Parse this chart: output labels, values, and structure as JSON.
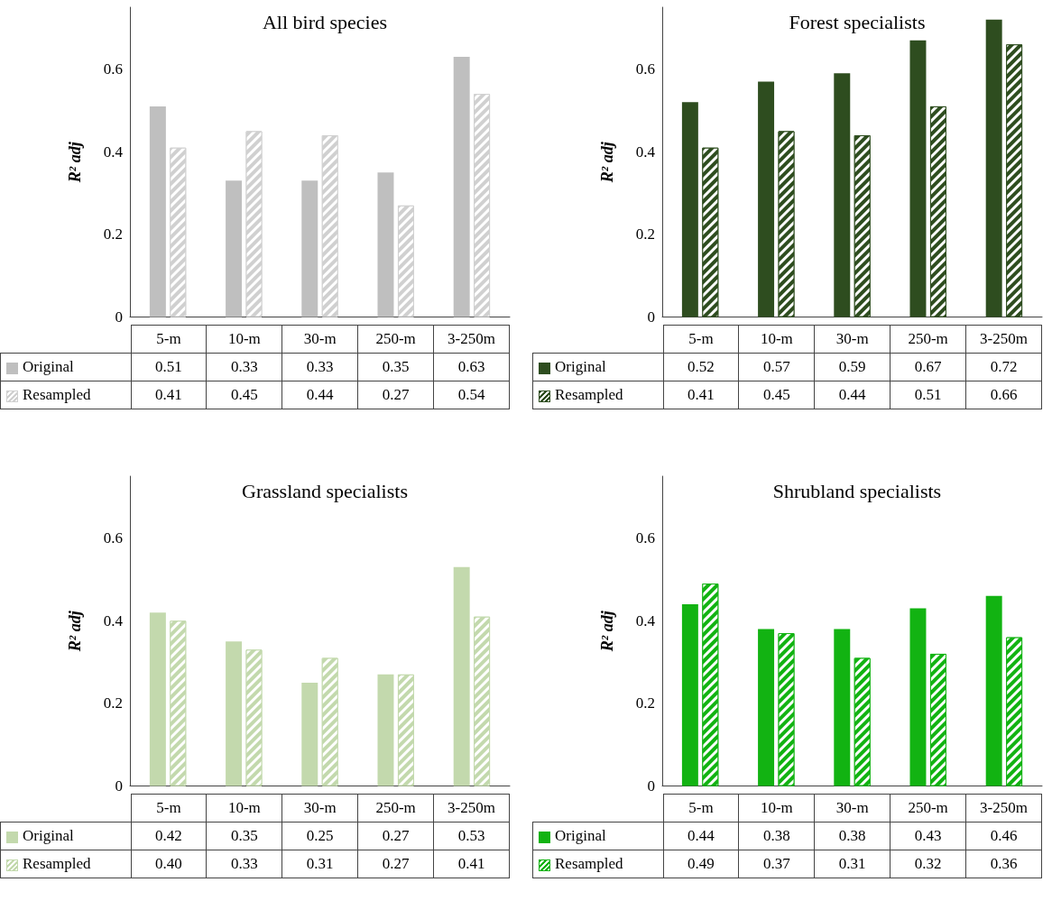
{
  "chart_data": [
    {
      "type": "bar",
      "title": "All bird species",
      "ylabel": "R² adj",
      "categories": [
        "5-m",
        "10-m",
        "30-m",
        "250-m",
        "3-250m"
      ],
      "ylim": [
        0,
        0.75
      ],
      "yticks": [
        0,
        0.2,
        0.4,
        0.6
      ],
      "grid": false,
      "legend": "bottom",
      "series": [
        {
          "name": "Original",
          "color": "#bfbfbf",
          "values": [
            0.51,
            0.33,
            0.33,
            0.35,
            0.63
          ],
          "value_labels": [
            "0.51",
            "0.33",
            "0.33",
            "0.35",
            "0.63"
          ]
        },
        {
          "name": "Resampled",
          "color": "#d0d0d0",
          "values": [
            0.41,
            0.45,
            0.44,
            0.27,
            0.54
          ],
          "value_labels": [
            "0.41",
            "0.45",
            "0.44",
            "0.27",
            "0.54"
          ]
        }
      ]
    },
    {
      "type": "bar",
      "title": "Forest specialists",
      "ylabel": "R² adj",
      "categories": [
        "5-m",
        "10-m",
        "30-m",
        "250-m",
        "3-250m"
      ],
      "ylim": [
        0,
        0.75
      ],
      "yticks": [
        0,
        0.2,
        0.4,
        0.6
      ],
      "grid": false,
      "legend": "bottom",
      "series": [
        {
          "name": "Original",
          "color": "#2e4d1f",
          "values": [
            0.52,
            0.57,
            0.59,
            0.67,
            0.72
          ],
          "value_labels": [
            "0.52",
            "0.57",
            "0.59",
            "0.67",
            "0.72"
          ]
        },
        {
          "name": "Resampled",
          "color": "#2e4d1f",
          "values": [
            0.41,
            0.45,
            0.44,
            0.51,
            0.66
          ],
          "value_labels": [
            "0.41",
            "0.45",
            "0.44",
            "0.51",
            "0.66"
          ]
        }
      ]
    },
    {
      "type": "bar",
      "title": "Grassland specialists",
      "ylabel": "R² adj",
      "categories": [
        "5-m",
        "10-m",
        "30-m",
        "250-m",
        "3-250m"
      ],
      "ylim": [
        0,
        0.75
      ],
      "yticks": [
        0,
        0.2,
        0.4,
        0.6
      ],
      "grid": false,
      "legend": "bottom",
      "series": [
        {
          "name": "Original",
          "color": "#c3d9ad",
          "values": [
            0.42,
            0.35,
            0.25,
            0.27,
            0.53
          ],
          "value_labels": [
            "0.42",
            "0.35",
            "0.25",
            "0.27",
            "0.53"
          ]
        },
        {
          "name": "Resampled",
          "color": "#c3d9ad",
          "values": [
            0.4,
            0.33,
            0.31,
            0.27,
            0.41
          ],
          "value_labels": [
            "0.40",
            "0.33",
            "0.31",
            "0.27",
            "0.41"
          ]
        }
      ]
    },
    {
      "type": "bar",
      "title": "Shrubland specialists",
      "ylabel": "R² adj",
      "categories": [
        "5-m",
        "10-m",
        "30-m",
        "250-m",
        "3-250m"
      ],
      "ylim": [
        0,
        0.75
      ],
      "yticks": [
        0,
        0.2,
        0.4,
        0.6
      ],
      "grid": false,
      "legend": "bottom",
      "series": [
        {
          "name": "Original",
          "color": "#12b312",
          "values": [
            0.44,
            0.38,
            0.38,
            0.43,
            0.46
          ],
          "value_labels": [
            "0.44",
            "0.38",
            "0.38",
            "0.43",
            "0.46"
          ]
        },
        {
          "name": "Resampled",
          "color": "#12b312",
          "values": [
            0.49,
            0.37,
            0.31,
            0.32,
            0.36
          ],
          "value_labels": [
            "0.49",
            "0.37",
            "0.31",
            "0.32",
            "0.36"
          ]
        }
      ]
    }
  ]
}
